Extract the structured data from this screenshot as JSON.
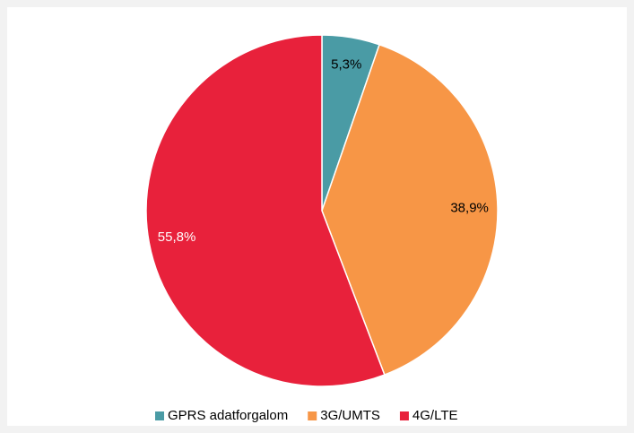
{
  "chart_data": {
    "type": "pie",
    "categories": [
      "GPRS adatforgalom",
      "3G/UMTS",
      "4G/LTE"
    ],
    "values": [
      5.3,
      38.9,
      55.8
    ],
    "value_labels": [
      "5,3%",
      "38,9%",
      "55,8%"
    ],
    "colors": [
      "#4a9ba5",
      "#f79646",
      "#e8213b"
    ],
    "value_label_colors": [
      "#000000",
      "#000000",
      "#ffffff"
    ],
    "legend": "bottom"
  }
}
